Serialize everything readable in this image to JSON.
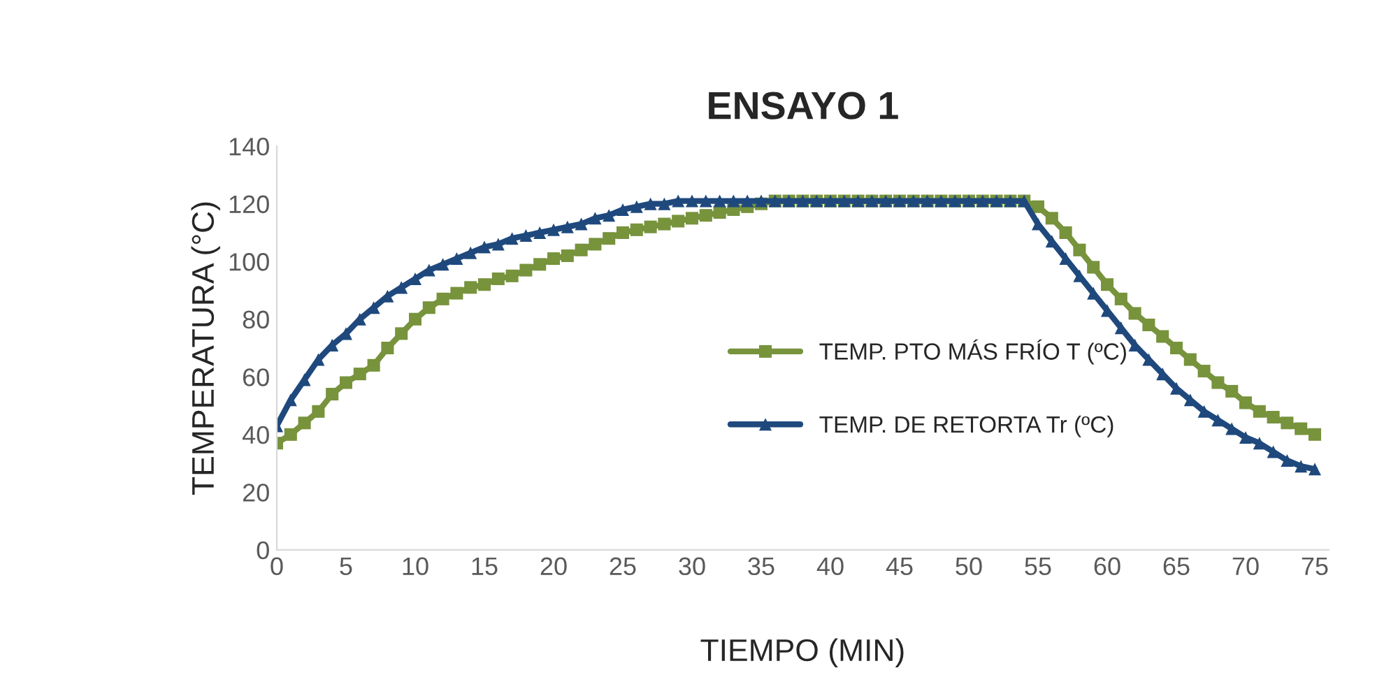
{
  "chart_data": {
    "type": "line",
    "title": "ENSAYO 1",
    "xlabel": "TIEMPO (MIN)",
    "ylabel": "TEMPERATURA (°C)",
    "x": [
      0,
      1,
      2,
      3,
      4,
      5,
      6,
      7,
      8,
      9,
      10,
      11,
      12,
      13,
      14,
      15,
      16,
      17,
      18,
      19,
      20,
      21,
      22,
      23,
      24,
      25,
      26,
      27,
      28,
      29,
      30,
      31,
      32,
      33,
      34,
      35,
      36,
      37,
      38,
      39,
      40,
      41,
      42,
      43,
      44,
      45,
      46,
      47,
      48,
      49,
      50,
      51,
      52,
      53,
      54,
      55,
      56,
      57,
      58,
      59,
      60,
      61,
      62,
      63,
      64,
      65,
      66,
      67,
      68,
      69,
      70,
      71,
      72,
      73,
      74,
      75
    ],
    "series": [
      {
        "name": "TEMP. PTO MÁS FRÍO T (ºC)",
        "color": "#77933c",
        "marker": "square",
        "values": [
          37,
          40,
          44,
          48,
          54,
          58,
          61,
          64,
          70,
          75,
          80,
          84,
          87,
          89,
          91,
          92,
          94,
          95,
          97,
          99,
          101,
          102,
          104,
          106,
          108,
          110,
          111,
          112,
          113,
          114,
          115,
          116,
          117,
          118,
          119,
          120,
          121,
          121,
          121,
          121,
          121,
          121,
          121,
          121,
          121,
          121,
          121,
          121,
          121,
          121,
          121,
          121,
          121,
          121,
          121,
          119,
          115,
          110,
          104,
          98,
          92,
          87,
          82,
          78,
          74,
          70,
          66,
          62,
          58,
          55,
          51,
          48,
          46,
          44,
          42,
          40
        ]
      },
      {
        "name": "TEMP. DE RETORTA Tr (ºC)",
        "color": "#1f497d",
        "marker": "triangle",
        "values": [
          43,
          52,
          59,
          66,
          71,
          75,
          80,
          84,
          88,
          91,
          94,
          97,
          99,
          101,
          103,
          105,
          106,
          108,
          109,
          110,
          111,
          112,
          113,
          115,
          116,
          118,
          119,
          120,
          120,
          121,
          121,
          121,
          121,
          121,
          121,
          121,
          121,
          121,
          121,
          121,
          121,
          121,
          121,
          121,
          121,
          121,
          121,
          121,
          121,
          121,
          121,
          121,
          121,
          121,
          121,
          113,
          107,
          101,
          95,
          89,
          83,
          77,
          71,
          66,
          61,
          56,
          52,
          48,
          45,
          42,
          39,
          37,
          34,
          31,
          29,
          28
        ]
      }
    ],
    "xlim": [
      0,
      76
    ],
    "xticks": [
      0,
      5,
      10,
      15,
      20,
      25,
      30,
      35,
      40,
      45,
      50,
      55,
      60,
      65,
      70,
      75
    ],
    "ylim": [
      0,
      140
    ],
    "yticks": [
      0,
      20,
      40,
      60,
      80,
      100,
      120,
      140
    ],
    "grid": false,
    "legend": "center"
  }
}
